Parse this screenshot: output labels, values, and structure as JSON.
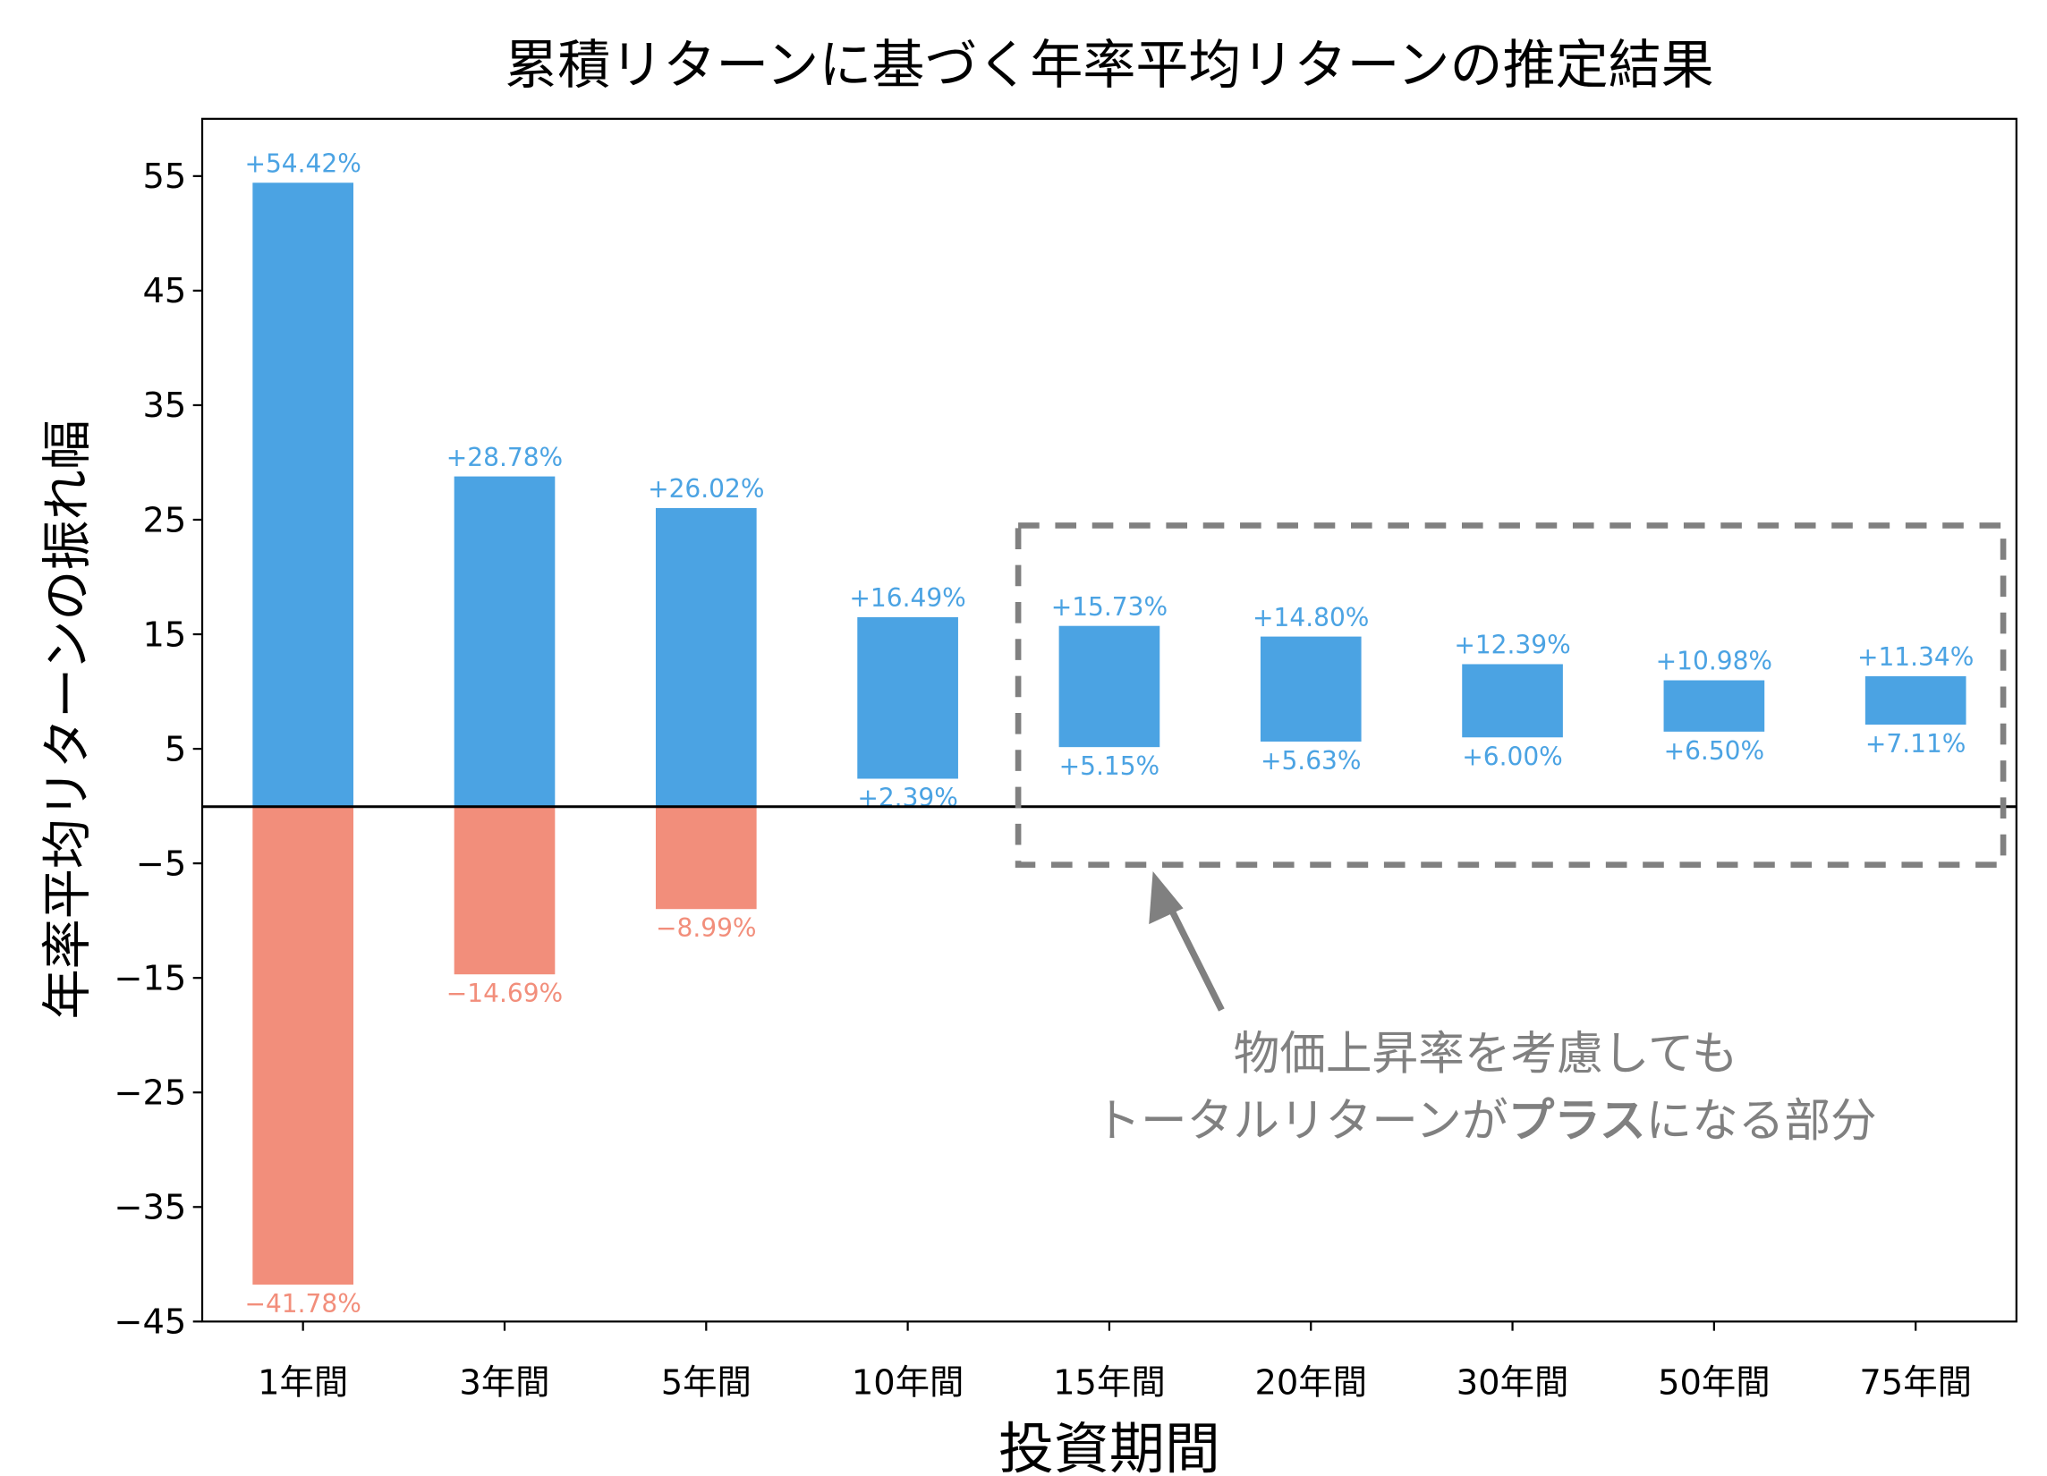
{
  "chart_data": {
    "type": "bar",
    "subtype": "floating-range",
    "title": "累積リターンに基づく年率平均リターンの推定結果",
    "xlabel": "投資期間",
    "ylabel": "年率平均リターンの振れ幅",
    "categories": [
      "1年間",
      "3年間",
      "5年間",
      "10年間",
      "15年間",
      "20年間",
      "30年間",
      "50年間",
      "75年間"
    ],
    "series": [
      {
        "role": "max",
        "values": [
          54.42,
          28.78,
          26.02,
          16.49,
          15.73,
          14.8,
          12.39,
          10.98,
          11.34
        ],
        "labels": [
          "+54.42%",
          "+28.78%",
          "+26.02%",
          "+16.49%",
          "+15.73%",
          "+14.80%",
          "+12.39%",
          "+10.98%",
          "+11.34%"
        ]
      },
      {
        "role": "min",
        "values": [
          -41.78,
          -14.69,
          -8.99,
          2.39,
          5.15,
          5.63,
          6.0,
          6.5,
          7.11
        ],
        "labels": [
          "−41.78%",
          "−14.69%",
          "−8.99%",
          "+2.39%",
          "+5.15%",
          "+5.63%",
          "+6.00%",
          "+6.50%",
          "+7.11%"
        ]
      }
    ],
    "yticks": [
      55,
      45,
      35,
      25,
      15,
      5,
      -5,
      -15,
      -25,
      -35,
      -45
    ],
    "ytick_labels": [
      "55",
      "45",
      "35",
      "25",
      "15",
      "5",
      "−5",
      "−15",
      "−25",
      "−35",
      "−45"
    ],
    "ylim": [
      -45,
      60
    ],
    "grid": false,
    "zero_line": true,
    "colors": {
      "positive": "#4BA3E3",
      "negative": "#F28E7B",
      "annotation": "#808080"
    },
    "annotation": {
      "highlight_range": {
        "categories": [
          "15年間",
          "75年間"
        ],
        "y": [
          -5,
          24.5
        ]
      },
      "line1": "物価上昇率を考慮しても",
      "line2_before": "トータルリターンが",
      "line2_bold": "プラス",
      "line2_after": "になる部分"
    }
  }
}
